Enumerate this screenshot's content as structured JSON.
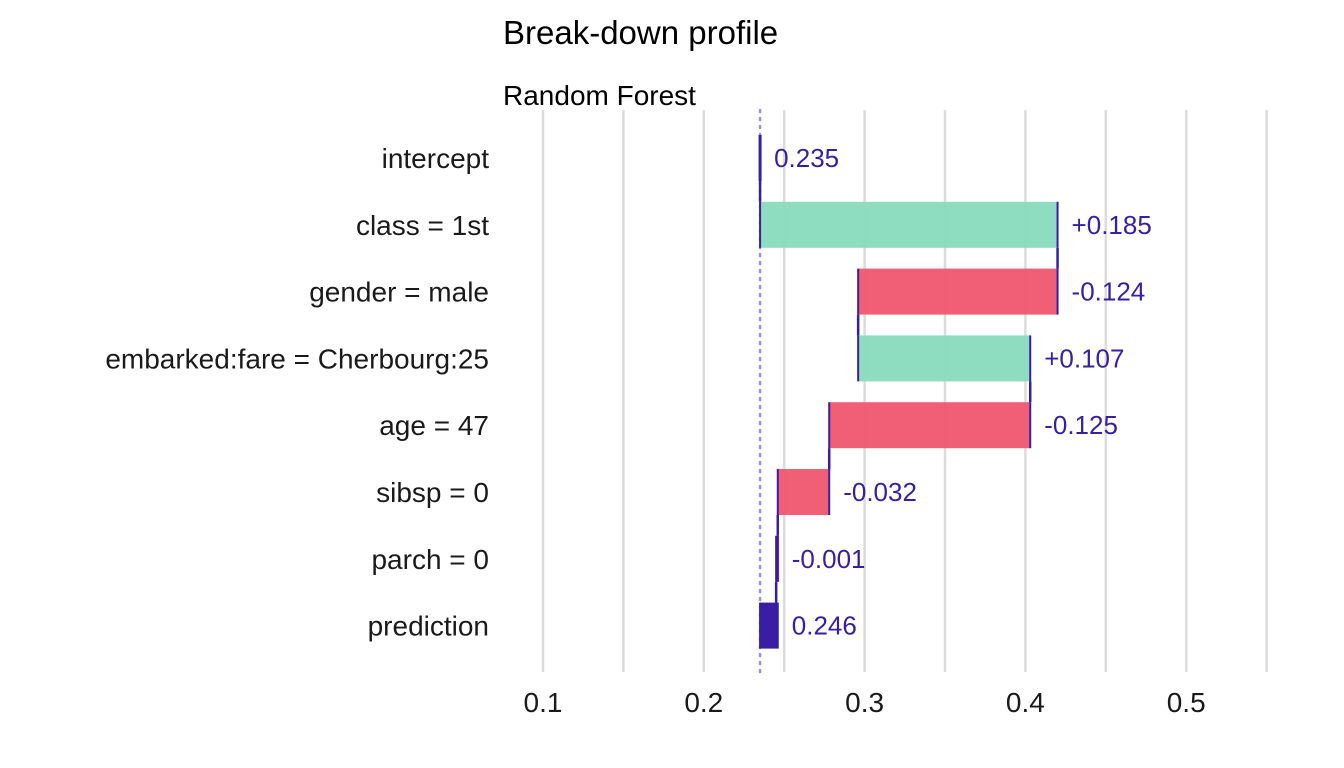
{
  "chart_data": {
    "type": "bar",
    "title": "Break-down profile",
    "subtitle": "Random Forest",
    "xlim": [
      0.1,
      0.55
    ],
    "x_ticks": [
      0.1,
      0.2,
      0.3,
      0.4,
      0.5
    ],
    "x_tick_labels": [
      "0.1",
      "0.2",
      "0.3",
      "0.4",
      "0.5"
    ],
    "grid": true,
    "baseline": 0.235,
    "colors": {
      "positive": "#8bdcbe",
      "negative": "#f05a71",
      "prediction": "#371ea3",
      "connector": "#371ea3",
      "baseline": "#9b8fe0"
    },
    "rows": [
      {
        "label": "intercept",
        "value": 0.235,
        "start": 0.235,
        "end": 0.235,
        "kind": "intercept",
        "text": "0.235"
      },
      {
        "label": "class = 1st",
        "value": 0.185,
        "start": 0.235,
        "end": 0.42,
        "kind": "positive",
        "text": "+0.185"
      },
      {
        "label": "gender = male",
        "value": -0.124,
        "start": 0.42,
        "end": 0.296,
        "kind": "negative",
        "text": "-0.124"
      },
      {
        "label": "embarked:fare = Cherbourg:25",
        "value": 0.107,
        "start": 0.296,
        "end": 0.403,
        "kind": "positive",
        "text": "+0.107"
      },
      {
        "label": "age = 47",
        "value": -0.125,
        "start": 0.403,
        "end": 0.278,
        "kind": "negative",
        "text": "-0.125"
      },
      {
        "label": "sibsp = 0",
        "value": -0.032,
        "start": 0.278,
        "end": 0.246,
        "kind": "negative",
        "text": "-0.032"
      },
      {
        "label": "parch = 0",
        "value": -0.001,
        "start": 0.246,
        "end": 0.245,
        "kind": "negative",
        "text": "-0.001"
      },
      {
        "label": "prediction",
        "value": 0.246,
        "start": 0.235,
        "end": 0.246,
        "kind": "prediction",
        "text": "0.246"
      }
    ]
  }
}
